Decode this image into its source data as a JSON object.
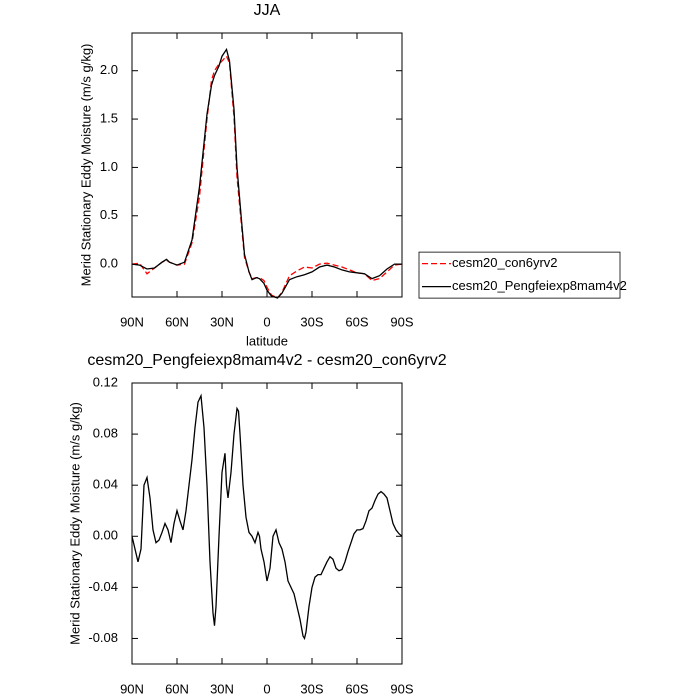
{
  "chart_data": [
    {
      "type": "line",
      "title": "JJA",
      "xlabel": "latitude",
      "ylabel": "Merid Stationary Eddy Moisture (m/s g/kg)",
      "x": [
        90,
        85,
        80,
        75,
        70,
        67,
        65,
        60,
        55,
        50,
        45,
        40,
        37,
        35,
        32,
        30,
        27,
        25,
        22,
        20,
        17,
        15,
        12,
        10,
        7,
        5,
        2,
        0,
        -3,
        -7,
        -10,
        -15,
        -20,
        -25,
        -30,
        -35,
        -40,
        -45,
        -50,
        -55,
        -60,
        -65,
        -70,
        -75,
        -80,
        -85,
        -90
      ],
      "series": [
        {
          "name": "cesm20_con6yrv2",
          "color": "#ff0000",
          "line_style": "dashed",
          "values": [
            0.0,
            0.01,
            -0.1,
            -0.04,
            0.02,
            0.04,
            0.02,
            -0.01,
            0.0,
            0.22,
            0.7,
            1.5,
            1.9,
            2.0,
            2.07,
            2.1,
            2.15,
            2.08,
            1.52,
            0.9,
            0.4,
            0.07,
            -0.08,
            -0.15,
            -0.14,
            -0.14,
            -0.17,
            -0.24,
            -0.32,
            -0.35,
            -0.29,
            -0.12,
            -0.07,
            -0.03,
            -0.04,
            0.0,
            0.01,
            -0.01,
            -0.03,
            -0.06,
            -0.09,
            -0.1,
            -0.17,
            -0.15,
            -0.08,
            -0.01,
            0.0
          ]
        },
        {
          "name": "cesm20_Pengfeiexp8mam4v2",
          "color": "#000000",
          "line_style": "solid",
          "values": [
            0.0,
            -0.01,
            -0.05,
            -0.04,
            0.02,
            0.05,
            0.02,
            -0.01,
            0.02,
            0.25,
            0.8,
            1.55,
            1.85,
            1.95,
            2.05,
            2.15,
            2.22,
            2.1,
            1.6,
            1.0,
            0.45,
            0.1,
            -0.08,
            -0.16,
            -0.14,
            -0.15,
            -0.2,
            -0.27,
            -0.33,
            -0.35,
            -0.3,
            -0.16,
            -0.13,
            -0.11,
            -0.08,
            -0.03,
            -0.01,
            -0.03,
            -0.06,
            -0.08,
            -0.09,
            -0.1,
            -0.15,
            -0.12,
            -0.05,
            0.0,
            0.0
          ]
        }
      ],
      "xlim": [
        90,
        -90
      ],
      "xticks": [
        {
          "value": 90,
          "label": "90N"
        },
        {
          "value": 60,
          "label": "60N"
        },
        {
          "value": 30,
          "label": "30N"
        },
        0,
        {
          "value": -30,
          "label": "30S"
        },
        {
          "value": -60,
          "label": "60S"
        },
        {
          "value": -90,
          "label": "90S"
        }
      ],
      "ylim": [
        -0.34,
        2.39
      ],
      "yticks": [
        {
          "value": 0,
          "label": "0.0"
        },
        0.5,
        {
          "value": 1,
          "label": "1.0"
        },
        1.5,
        {
          "value": 2,
          "label": "2.0"
        }
      ],
      "legend": "right"
    },
    {
      "type": "line",
      "title": "cesm20_Pengfeiexp8mam4v2 - cesm20_con6yrv2",
      "xlabel": "latitude",
      "ylabel": "Merid Stationary Eddy Moisture (m/s g/kg)",
      "x": [
        90,
        86,
        84,
        82,
        80,
        78,
        76,
        74,
        72,
        70,
        68,
        66,
        64,
        62,
        60,
        58,
        56,
        54,
        52,
        50,
        48,
        46,
        44,
        42,
        40,
        38,
        36,
        35,
        34,
        32,
        30,
        28,
        27,
        26,
        24,
        22,
        20,
        19,
        18,
        16,
        14,
        12,
        10,
        8,
        6,
        5,
        4,
        2,
        0,
        -2,
        -4,
        -6,
        -8,
        -10,
        -12,
        -14,
        -16,
        -18,
        -20,
        -22,
        -24,
        -25,
        -26,
        -28,
        -30,
        -32,
        -34,
        -36,
        -38,
        -40,
        -42,
        -44,
        -46,
        -48,
        -50,
        -52,
        -54,
        -56,
        -58,
        -60,
        -62,
        -64,
        -66,
        -68,
        -70,
        -72,
        -74,
        -76,
        -78,
        -80,
        -82,
        -84,
        -86,
        -88,
        -90
      ],
      "series": [
        {
          "color": "#000000",
          "line_style": "solid",
          "values": [
            0,
            -0.02,
            -0.01,
            0.04,
            0.046,
            0.03,
            0.005,
            -0.005,
            -0.003,
            0.003,
            0.01,
            0.005,
            -0.005,
            0.01,
            0.02,
            0.012,
            0.005,
            0.02,
            0.04,
            0.06,
            0.085,
            0.105,
            0.11,
            0.085,
            0.04,
            -0.02,
            -0.06,
            -0.07,
            -0.055,
            0.0,
            0.05,
            0.065,
            0.04,
            0.03,
            0.05,
            0.08,
            0.1,
            0.098,
            0.08,
            0.04,
            0.015,
            0.003,
            0.0,
            -0.005,
            0.003,
            0.0,
            -0.01,
            -0.02,
            -0.035,
            -0.025,
            0.0,
            0.005,
            -0.005,
            -0.01,
            -0.02,
            -0.035,
            -0.04,
            -0.045,
            -0.055,
            -0.065,
            -0.078,
            -0.08,
            -0.075,
            -0.055,
            -0.04,
            -0.032,
            -0.03,
            -0.03,
            -0.025,
            -0.02,
            -0.016,
            -0.018,
            -0.025,
            -0.027,
            -0.026,
            -0.02,
            -0.012,
            -0.005,
            0.002,
            0.005,
            0.005,
            0.006,
            0.012,
            0.02,
            0.022,
            0.028,
            0.033,
            0.035,
            0.033,
            0.03,
            0.02,
            0.01,
            0.005,
            0.002,
            0.0
          ]
        }
      ],
      "xlim": [
        90,
        -90
      ],
      "xticks": [
        {
          "value": 90,
          "label": "90N"
        },
        {
          "value": 60,
          "label": "60N"
        },
        {
          "value": 30,
          "label": "30N"
        },
        0,
        {
          "value": -30,
          "label": "30S"
        },
        {
          "value": -60,
          "label": "60S"
        },
        {
          "value": -90,
          "label": "90S"
        }
      ],
      "ylim": [
        -0.1,
        0.12
      ],
      "yticks": [
        -0.08,
        -0.04,
        {
          "value": 0,
          "label": "0.00"
        },
        0.04,
        0.08,
        0.12
      ]
    }
  ]
}
